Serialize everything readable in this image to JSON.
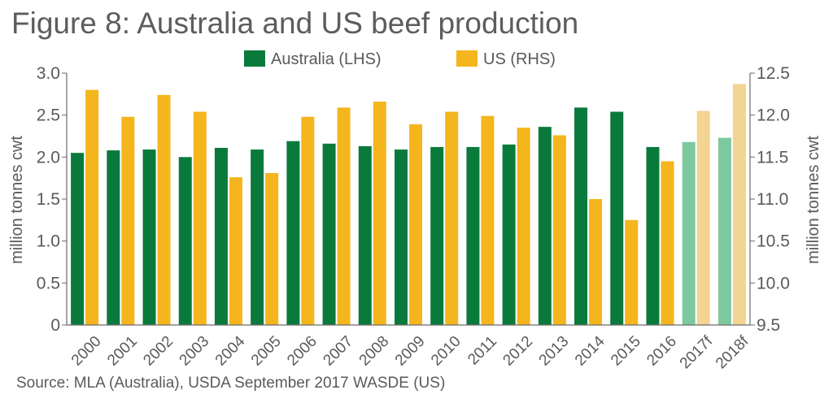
{
  "chart_data": {
    "type": "bar",
    "title": "Figure 8: Australia and US beef production",
    "source": "Source: MLA (Australia), USDA September 2017 WASDE (US)",
    "ylabel_left": "million tonnes cwt",
    "ylabel_right": "million tonnes cwt",
    "ylim_left": [
      0,
      3.0
    ],
    "ylim_right": [
      9.5,
      12.5
    ],
    "yticks_left": [
      "0",
      "0.5",
      "1.0",
      "1.5",
      "2.0",
      "2.5",
      "3.0"
    ],
    "yticks_right": [
      "9.5",
      "10.0",
      "10.5",
      "11.0",
      "11.5",
      "12.0",
      "12.5"
    ],
    "grid": false,
    "legend_position": "top-center",
    "categories": [
      "2000",
      "2001",
      "2002",
      "2003",
      "2004",
      "2005",
      "2006",
      "2007",
      "2008",
      "2009",
      "2010",
      "2011",
      "2012",
      "2013",
      "2014",
      "2015",
      "2016",
      "2017f",
      "2018f"
    ],
    "forecast_categories": [
      "2017f",
      "2018f"
    ],
    "series": [
      {
        "name": "Australia (LHS)",
        "axis": "left",
        "color": "#0a7a3c",
        "forecast_color": "#7ec8a0",
        "values": [
          2.05,
          2.08,
          2.09,
          2.0,
          2.11,
          2.09,
          2.19,
          2.16,
          2.13,
          2.09,
          2.12,
          2.12,
          2.15,
          2.36,
          2.59,
          2.54,
          2.12,
          2.18,
          2.23
        ]
      },
      {
        "name": "US (RHS)",
        "axis": "right",
        "color": "#f5b51d",
        "forecast_color": "#f2d493",
        "values": [
          12.3,
          11.98,
          12.24,
          12.04,
          11.26,
          11.31,
          11.98,
          12.09,
          12.16,
          11.89,
          12.04,
          11.99,
          11.85,
          11.76,
          11.0,
          10.75,
          11.45,
          12.05,
          12.37
        ]
      }
    ]
  }
}
